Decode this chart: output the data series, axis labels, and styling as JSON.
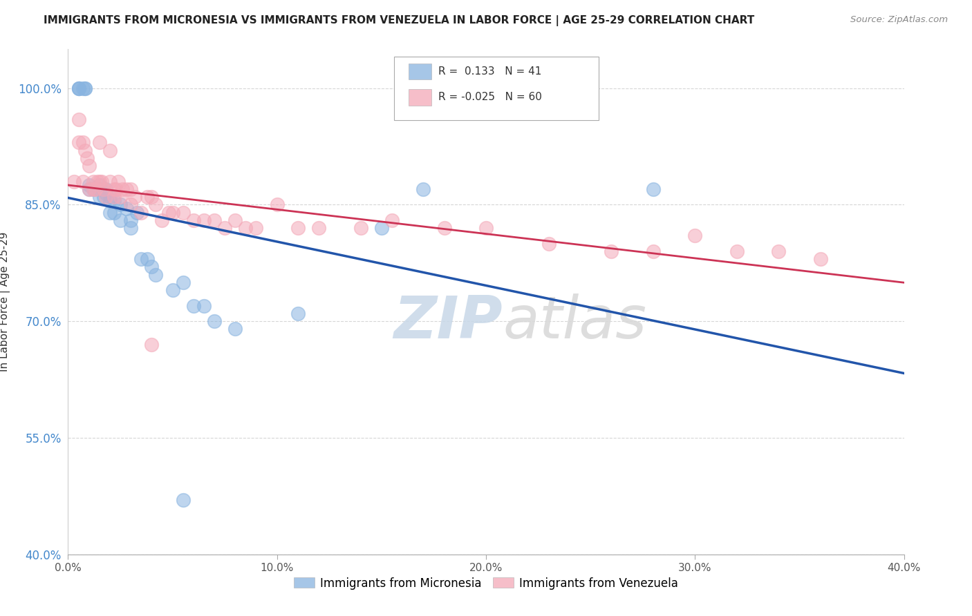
{
  "title": "IMMIGRANTS FROM MICRONESIA VS IMMIGRANTS FROM VENEZUELA IN LABOR FORCE | AGE 25-29 CORRELATION CHART",
  "source": "Source: ZipAtlas.com",
  "ylabel": "In Labor Force | Age 25-29",
  "xlim": [
    0.0,
    0.4
  ],
  "ylim": [
    0.4,
    1.05
  ],
  "yticks": [
    0.4,
    0.55,
    0.7,
    0.85,
    1.0
  ],
  "ytick_labels": [
    "40.0%",
    "55.0%",
    "70.0%",
    "85.0%",
    "100.0%"
  ],
  "xticks": [
    0.0,
    0.1,
    0.2,
    0.3,
    0.4
  ],
  "xtick_labels": [
    "0.0%",
    "10.0%",
    "20.0%",
    "30.0%",
    "40.0%"
  ],
  "blue_R": 0.133,
  "blue_N": 41,
  "pink_R": -0.025,
  "pink_N": 60,
  "blue_color": "#89b4e0",
  "pink_color": "#f4a9b8",
  "blue_line_color": "#2255AA",
  "pink_line_color": "#CC3355",
  "watermark_zip": "ZIP",
  "watermark_atlas": "atlas",
  "legend_label_blue": "Immigrants from Micronesia",
  "legend_label_pink": "Immigrants from Venezuela",
  "blue_scatter_x": [
    0.005,
    0.005,
    0.005,
    0.007,
    0.008,
    0.008,
    0.01,
    0.01,
    0.012,
    0.015,
    0.015,
    0.015,
    0.017,
    0.018,
    0.018,
    0.02,
    0.02,
    0.02,
    0.022,
    0.022,
    0.025,
    0.025,
    0.028,
    0.03,
    0.03,
    0.033,
    0.035,
    0.038,
    0.04,
    0.042,
    0.05,
    0.055,
    0.06,
    0.065,
    0.07,
    0.08,
    0.11,
    0.15,
    0.17,
    0.28,
    0.055
  ],
  "blue_scatter_y": [
    1.0,
    1.0,
    1.0,
    1.0,
    1.0,
    1.0,
    0.875,
    0.87,
    0.87,
    0.87,
    0.86,
    0.875,
    0.86,
    0.87,
    0.865,
    0.86,
    0.855,
    0.84,
    0.855,
    0.84,
    0.83,
    0.85,
    0.845,
    0.82,
    0.83,
    0.84,
    0.78,
    0.78,
    0.77,
    0.76,
    0.74,
    0.75,
    0.72,
    0.72,
    0.7,
    0.69,
    0.71,
    0.82,
    0.87,
    0.87,
    0.47
  ],
  "pink_scatter_x": [
    0.003,
    0.005,
    0.005,
    0.007,
    0.007,
    0.008,
    0.009,
    0.01,
    0.01,
    0.012,
    0.012,
    0.013,
    0.014,
    0.015,
    0.015,
    0.016,
    0.017,
    0.018,
    0.02,
    0.02,
    0.022,
    0.022,
    0.023,
    0.024,
    0.025,
    0.026,
    0.028,
    0.03,
    0.03,
    0.032,
    0.035,
    0.038,
    0.04,
    0.042,
    0.045,
    0.048,
    0.05,
    0.055,
    0.06,
    0.065,
    0.07,
    0.075,
    0.08,
    0.085,
    0.09,
    0.1,
    0.11,
    0.12,
    0.14,
    0.155,
    0.18,
    0.2,
    0.23,
    0.26,
    0.28,
    0.3,
    0.32,
    0.34,
    0.36,
    0.04
  ],
  "pink_scatter_y": [
    0.88,
    0.96,
    0.93,
    0.93,
    0.88,
    0.92,
    0.91,
    0.9,
    0.87,
    0.87,
    0.88,
    0.87,
    0.88,
    0.93,
    0.88,
    0.88,
    0.87,
    0.86,
    0.92,
    0.88,
    0.87,
    0.86,
    0.87,
    0.88,
    0.86,
    0.87,
    0.87,
    0.87,
    0.85,
    0.86,
    0.84,
    0.86,
    0.86,
    0.85,
    0.83,
    0.84,
    0.84,
    0.84,
    0.83,
    0.83,
    0.83,
    0.82,
    0.83,
    0.82,
    0.82,
    0.85,
    0.82,
    0.82,
    0.82,
    0.83,
    0.82,
    0.82,
    0.8,
    0.79,
    0.79,
    0.81,
    0.79,
    0.79,
    0.78,
    0.67
  ],
  "background_color": "#FFFFFF",
  "grid_color": "#CCCCCC"
}
